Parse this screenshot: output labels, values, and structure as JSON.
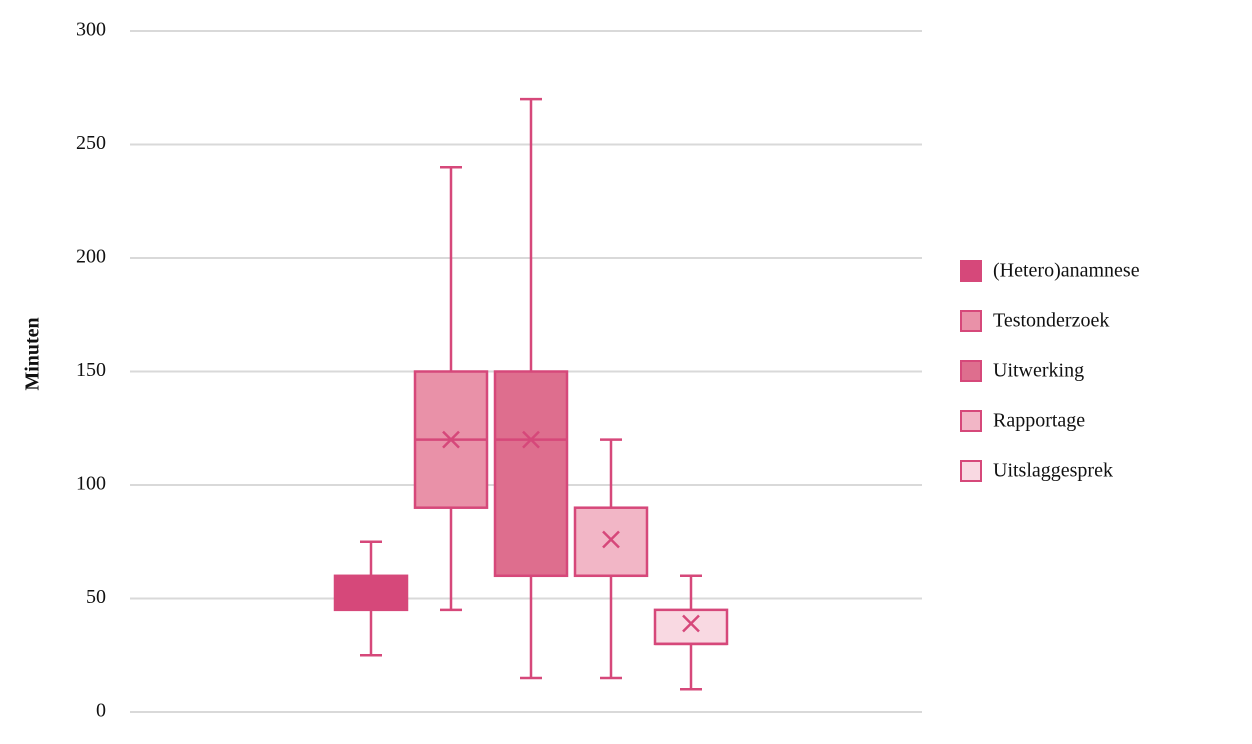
{
  "chart_data": {
    "type": "box",
    "y_label": "Minuten",
    "ylim": [
      0,
      300
    ],
    "yticks": [
      0,
      50,
      100,
      150,
      200,
      250,
      300
    ],
    "grid": true,
    "stroke": "#d6487a",
    "series": [
      {
        "name": "(Hetero)anamnese",
        "color": "#d6487a",
        "min": 25,
        "q1": 45,
        "median": 50,
        "q3": 60,
        "max": 75,
        "mean": 52
      },
      {
        "name": "Testonderzoek",
        "color": "#e991a8",
        "min": 45,
        "q1": 90,
        "median": 120,
        "q3": 150,
        "max": 240,
        "mean": 120
      },
      {
        "name": "Uitwerking",
        "color": "#de6e8e",
        "min": 15,
        "q1": 60,
        "median": 120,
        "q3": 150,
        "max": 270,
        "mean": 120
      },
      {
        "name": "Rapportage",
        "color": "#f2b6c6",
        "min": 15,
        "q1": 60,
        "median": 60,
        "q3": 90,
        "max": 120,
        "mean": 76
      },
      {
        "name": "Uitslaggesprek",
        "color": "#f9d9e2",
        "min": 10,
        "q1": 30,
        "median": 30,
        "q3": 45,
        "max": 60,
        "mean": 39
      }
    ]
  }
}
